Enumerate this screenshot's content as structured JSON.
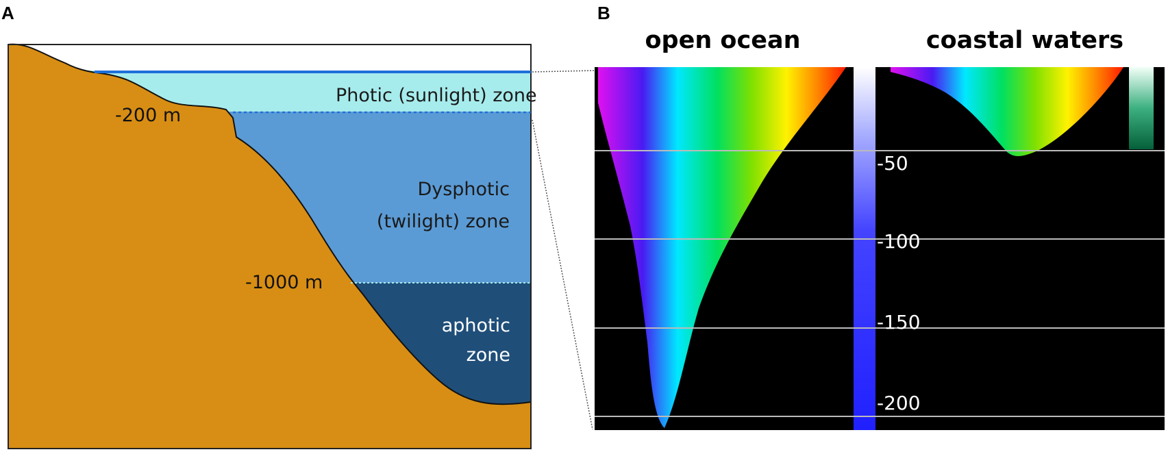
{
  "panel_a": {
    "letter": "A",
    "zones": {
      "photic": "Photic (sunlight) zone",
      "dysphotic_line1": "Dysphotic",
      "dysphotic_line2": "(twilight) zone",
      "aphotic_line1": "aphotic",
      "aphotic_line2": "zone"
    },
    "depth_labels": {
      "shallow": "-200 m",
      "deep": "-1000 m"
    },
    "colors": {
      "seafloor": "#D88E14",
      "photic": "#A7ECEC",
      "dysphotic": "#5B9BD5",
      "aphotic": "#1F4E79",
      "surface_line": "#1E6FD9"
    }
  },
  "panel_b": {
    "letter": "B",
    "titles": {
      "open_ocean": "open ocean",
      "coastal": "coastal waters"
    },
    "depth_ticks": [
      "-50",
      "-100",
      "-150",
      "-200"
    ],
    "background": "#000000"
  }
}
